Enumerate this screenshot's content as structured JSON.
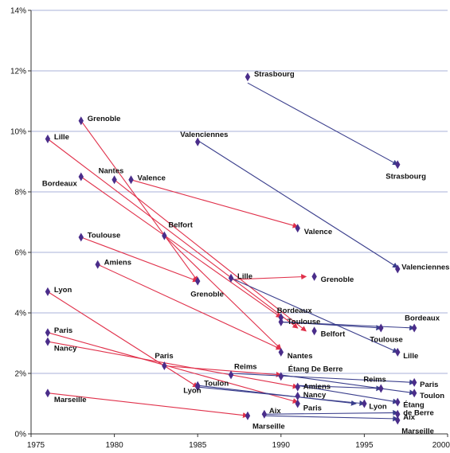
{
  "chart_data": {
    "type": "scatter",
    "title": "",
    "xlabel": "",
    "ylabel": "",
    "xlim": [
      1975,
      2000
    ],
    "ylim": [
      0,
      14
    ],
    "grid": true,
    "x_ticks": [
      "1975",
      "1980",
      "1985",
      "1990",
      "1995",
      "2000"
    ],
    "y_ticks": [
      "0%",
      "2%",
      "4%",
      "6%",
      "8%",
      "10%",
      "12%",
      "14%"
    ],
    "colors": {
      "red": "#e0304a",
      "blue": "#3a3e8c",
      "marker": "#4a2d8a",
      "grid": "#aab0d8",
      "axis": "#333333"
    },
    "arrows": [
      {
        "color": "red",
        "from": [
          1976,
          9.75
        ],
        "to": [
          1991,
          3.5
        ]
      },
      {
        "color": "red",
        "from": [
          1978,
          10.35
        ],
        "to": [
          1985,
          5.05
        ]
      },
      {
        "color": "red",
        "from": [
          1978,
          8.5
        ],
        "to": [
          1990,
          3.85
        ]
      },
      {
        "color": "red",
        "from": [
          1980,
          8.4
        ],
        "to": [
          1991.5,
          3.4
        ]
      },
      {
        "color": "red",
        "from": [
          1981,
          8.4
        ],
        "to": [
          1991,
          6.85
        ]
      },
      {
        "color": "red",
        "from": [
          1978,
          6.5
        ],
        "to": [
          1985,
          5.05
        ]
      },
      {
        "color": "red",
        "from": [
          1983,
          6.55
        ],
        "to": [
          1990,
          2.8
        ]
      },
      {
        "color": "red",
        "from": [
          1979,
          5.6
        ],
        "to": [
          1990,
          2.8
        ]
      },
      {
        "color": "red",
        "from": [
          1976,
          4.7
        ],
        "to": [
          1985,
          1.55
        ]
      },
      {
        "color": "red",
        "from": [
          1976,
          3.35
        ],
        "to": [
          1991,
          1.05
        ]
      },
      {
        "color": "red",
        "from": [
          1976,
          3.05
        ],
        "to": [
          1991,
          1.55
        ]
      },
      {
        "color": "red",
        "from": [
          1976,
          1.35
        ],
        "to": [
          1988,
          0.6
        ]
      },
      {
        "color": "red",
        "from": [
          1987,
          5.1
        ],
        "to": [
          1991.5,
          5.2
        ]
      },
      {
        "color": "red",
        "from": [
          1983,
          2.25
        ],
        "to": [
          1990,
          1.95
        ]
      },
      {
        "color": "blue",
        "from": [
          1988,
          11.6
        ],
        "to": [
          1997,
          8.9
        ]
      },
      {
        "color": "blue",
        "from": [
          1985,
          9.7
        ],
        "to": [
          1997,
          5.5
        ]
      },
      {
        "color": "blue",
        "from": [
          1987,
          5.15
        ],
        "to": [
          1997,
          2.7
        ]
      },
      {
        "color": "blue",
        "from": [
          1990,
          3.7
        ],
        "to": [
          1998,
          3.5
        ]
      },
      {
        "color": "blue",
        "from": [
          1990,
          3.7
        ],
        "to": [
          1996,
          3.5
        ]
      },
      {
        "color": "blue",
        "from": [
          1987,
          2.0
        ],
        "to": [
          1998,
          1.7
        ]
      },
      {
        "color": "blue",
        "from": [
          1990,
          1.95
        ],
        "to": [
          1998,
          1.35
        ]
      },
      {
        "color": "blue",
        "from": [
          1991,
          1.6
        ],
        "to": [
          1997,
          1.05
        ]
      },
      {
        "color": "blue",
        "from": [
          1991,
          1.6
        ],
        "to": [
          1996,
          1.5
        ]
      },
      {
        "color": "blue",
        "from": [
          1985,
          1.55
        ],
        "to": [
          1995,
          1.0
        ]
      },
      {
        "color": "blue",
        "from": [
          1985,
          1.6
        ],
        "to": [
          1994.5,
          1.0
        ]
      },
      {
        "color": "blue",
        "from": [
          1989,
          0.65
        ],
        "to": [
          1997,
          0.7
        ]
      },
      {
        "color": "blue",
        "from": [
          1989,
          0.6
        ],
        "to": [
          1997,
          0.5
        ]
      }
    ],
    "points": [
      {
        "x": 1976,
        "y": 9.75,
        "label": "Lille"
      },
      {
        "x": 1978,
        "y": 10.35,
        "label": "Grenoble"
      },
      {
        "x": 1978,
        "y": 8.5,
        "label": "Bordeaux"
      },
      {
        "x": 1980,
        "y": 8.4,
        "label": "Nantes"
      },
      {
        "x": 1981,
        "y": 8.4,
        "label": "Valence"
      },
      {
        "x": 1978,
        "y": 6.5,
        "label": "Toulouse"
      },
      {
        "x": 1983,
        "y": 6.55,
        "label": "Belfort"
      },
      {
        "x": 1979,
        "y": 5.6,
        "label": "Amiens"
      },
      {
        "x": 1976,
        "y": 4.7,
        "label": "Lyon"
      },
      {
        "x": 1976,
        "y": 3.35,
        "label": "Paris"
      },
      {
        "x": 1976,
        "y": 3.05,
        "label": "Nancy"
      },
      {
        "x": 1976,
        "y": 1.35,
        "label": "Marseille"
      },
      {
        "x": 1985,
        "y": 5.05,
        "label": "Grenoble"
      },
      {
        "x": 1987,
        "y": 5.15,
        "label": "Lille"
      },
      {
        "x": 1991,
        "y": 6.8,
        "label": "Valence"
      },
      {
        "x": 1992,
        "y": 5.2,
        "label": "Grenoble"
      },
      {
        "x": 1990,
        "y": 3.85,
        "label": "Bordeaux"
      },
      {
        "x": 1990,
        "y": 3.7,
        "label": "Toulouse"
      },
      {
        "x": 1992,
        "y": 3.4,
        "label": "Belfort"
      },
      {
        "x": 1990,
        "y": 2.7,
        "label": "Nantes"
      },
      {
        "x": 1983,
        "y": 2.25,
        "label": "Paris"
      },
      {
        "x": 1987,
        "y": 1.95,
        "label": "Reims"
      },
      {
        "x": 1990,
        "y": 1.9,
        "label": "Étang De Berre"
      },
      {
        "x": 1985,
        "y": 1.55,
        "label": "Lyon"
      },
      {
        "x": 1985,
        "y": 1.6,
        "label": "Toulon"
      },
      {
        "x": 1991,
        "y": 1.55,
        "label": "Amiens"
      },
      {
        "x": 1991,
        "y": 1.25,
        "label": "Nancy"
      },
      {
        "x": 1991,
        "y": 1.0,
        "label": "Paris"
      },
      {
        "x": 1988,
        "y": 0.6,
        "label": "Marseille"
      },
      {
        "x": 1989,
        "y": 0.65,
        "label": "Aix"
      },
      {
        "x": 1988,
        "y": 11.8,
        "label": "Strasbourg"
      },
      {
        "x": 1997,
        "y": 8.9,
        "label": "Strasbourg"
      },
      {
        "x": 1985,
        "y": 9.65,
        "label": "Valenciennes"
      },
      {
        "x": 1997,
        "y": 5.45,
        "label": "Valenciennes"
      },
      {
        "x": 1998,
        "y": 3.5,
        "label": "Bordeaux"
      },
      {
        "x": 1996,
        "y": 3.5,
        "label": "Toulouse"
      },
      {
        "x": 1997,
        "y": 2.7,
        "label": "Lille"
      },
      {
        "x": 1996,
        "y": 1.5,
        "label": "Reims"
      },
      {
        "x": 1998,
        "y": 1.7,
        "label": "Paris"
      },
      {
        "x": 1998,
        "y": 1.35,
        "label": "Toulon"
      },
      {
        "x": 1995,
        "y": 1.0,
        "label": "Lyon"
      },
      {
        "x": 1997,
        "y": 1.05,
        "label": "Étang de Berre"
      },
      {
        "x": 1997,
        "y": 0.65,
        "label": "Aix"
      },
      {
        "x": 1997,
        "y": 0.45,
        "label": "Marseille"
      }
    ]
  }
}
